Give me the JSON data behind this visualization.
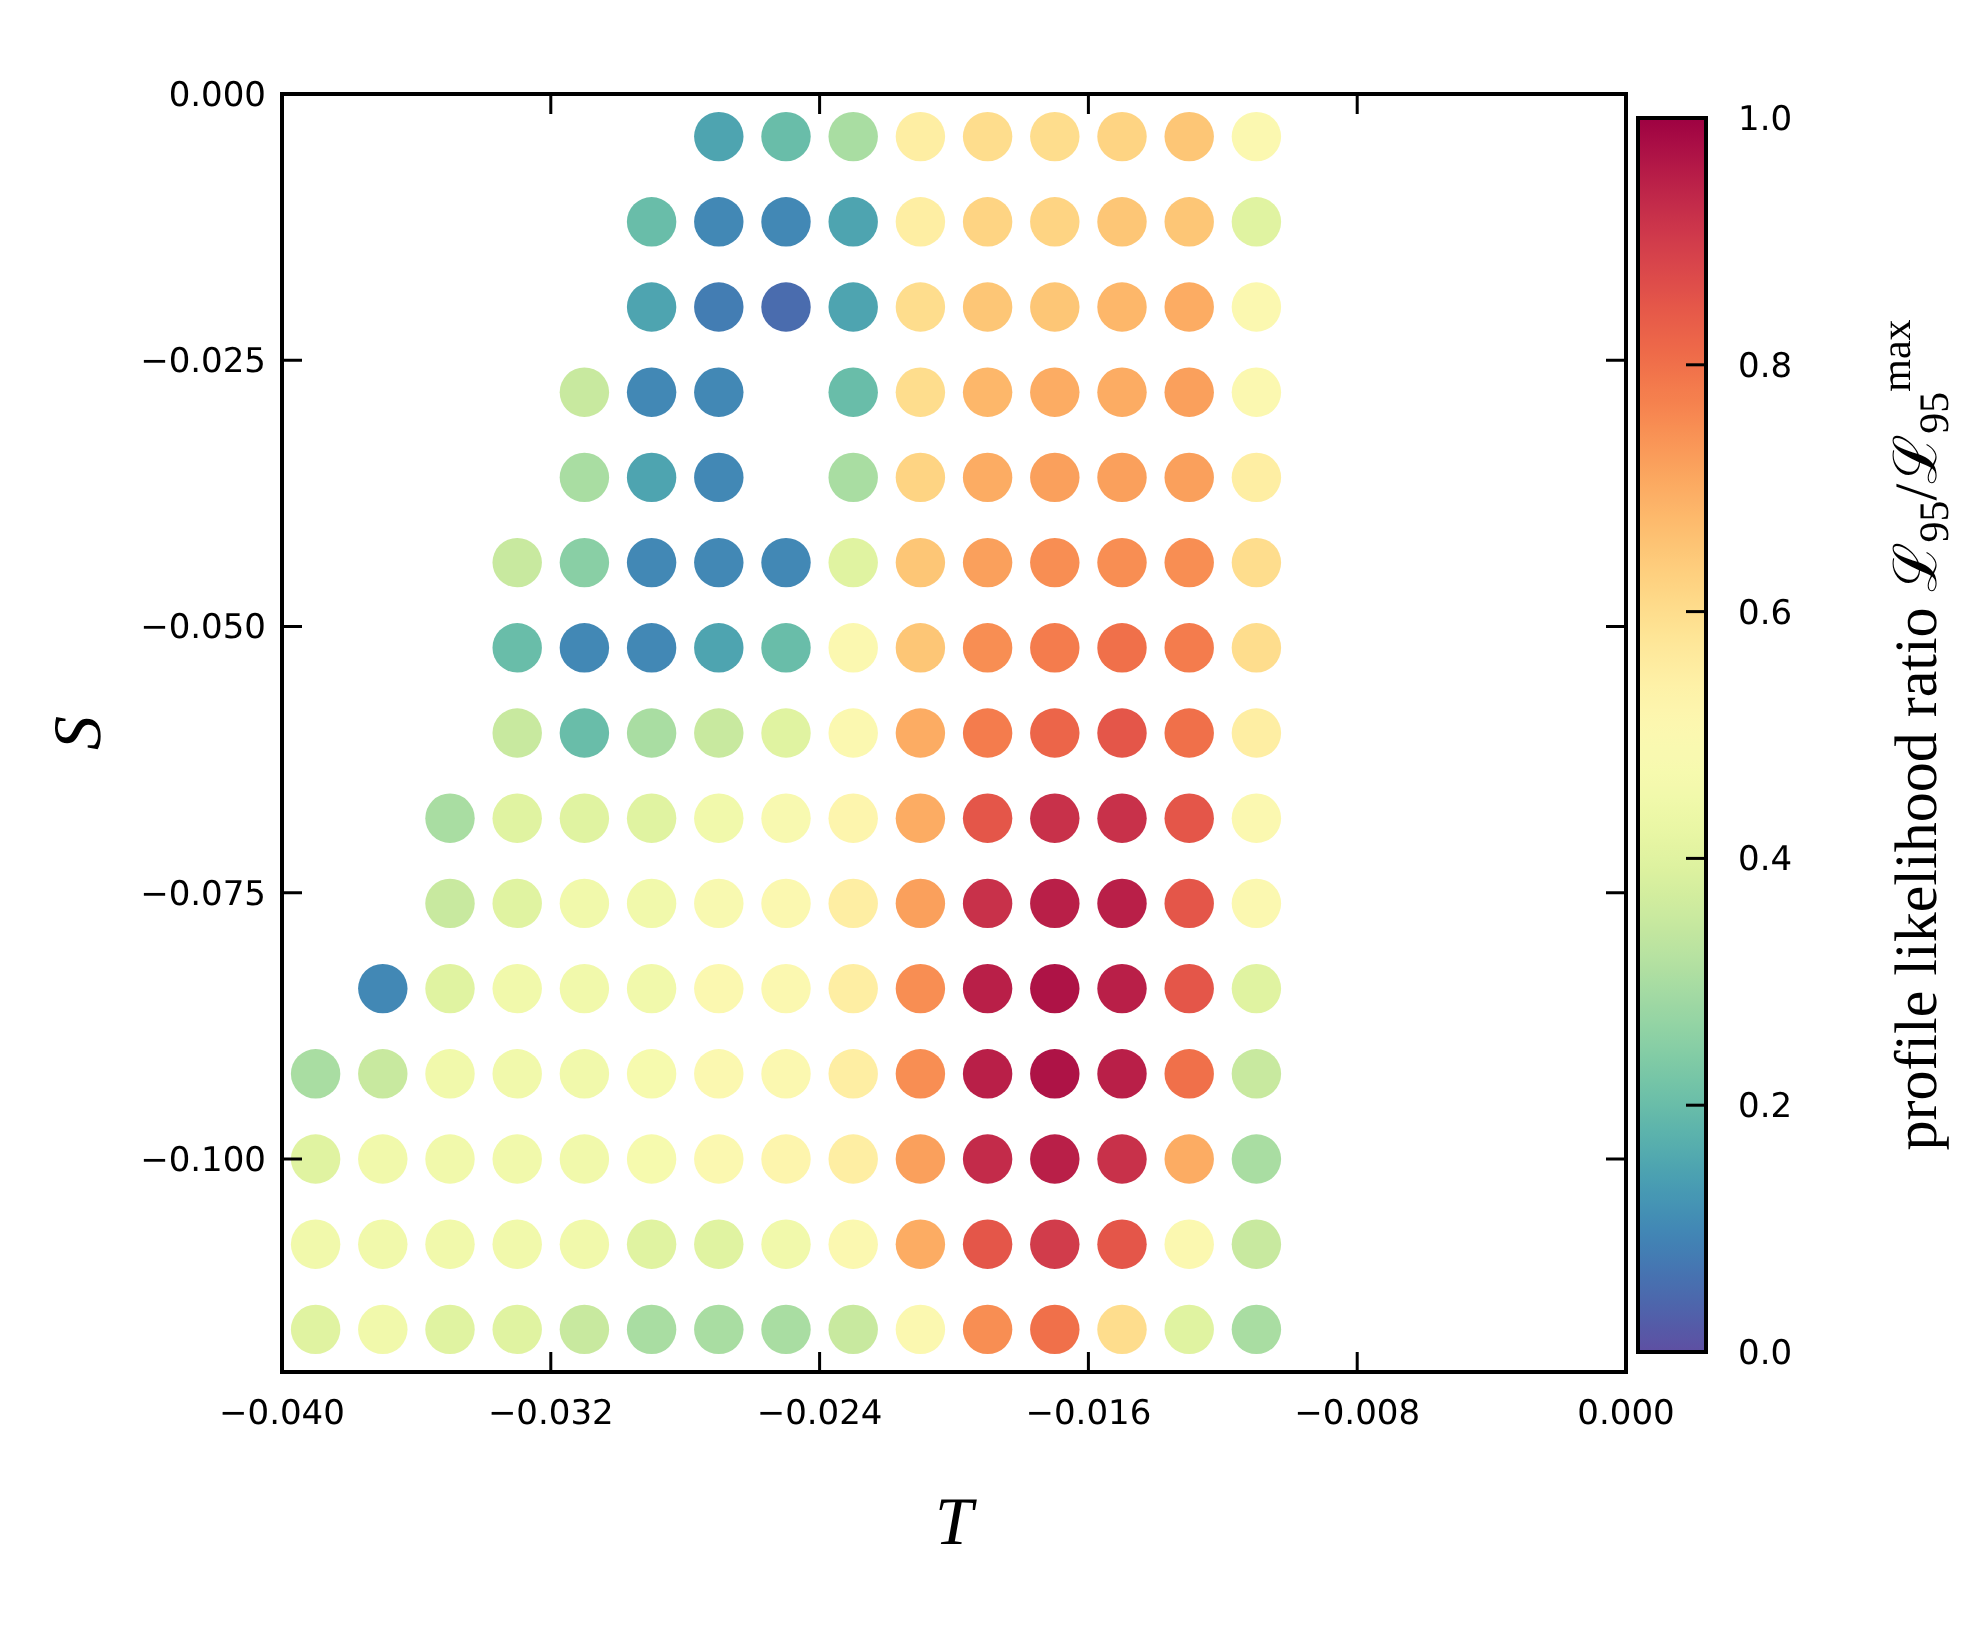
{
  "chart_data": {
    "type": "scatter",
    "xlabel": "T",
    "ylabel": "S",
    "clabel": "profile likelihood ratio ℒ$_{95}$/ℒ$_{95}$$^{max}$",
    "marker": "circle",
    "xlim": [
      -0.04,
      0
    ],
    "ylim": [
      -0.12,
      0
    ],
    "xticks": [
      {
        "value": -0.04,
        "label": "−0.040"
      },
      {
        "value": -0.032,
        "label": "−0.032"
      },
      {
        "value": -0.024,
        "label": "−0.024"
      },
      {
        "value": -0.016,
        "label": "−0.016"
      },
      {
        "value": -0.008,
        "label": "−0.008"
      },
      {
        "value": 0,
        "label": "0.000"
      }
    ],
    "yticks": [
      {
        "value": 0,
        "label": "0.000"
      },
      {
        "value": -0.025,
        "label": "−0.025"
      },
      {
        "value": -0.05,
        "label": "−0.050"
      },
      {
        "value": -0.075,
        "label": "−0.075"
      },
      {
        "value": -0.1,
        "label": "−0.100"
      }
    ],
    "clim": [
      0,
      1
    ],
    "cticks": [
      {
        "value": 0,
        "label": "0.0"
      },
      {
        "value": 0.2,
        "label": "0.2"
      },
      {
        "value": 0.4,
        "label": "0.4"
      },
      {
        "value": 0.6,
        "label": "0.6"
      },
      {
        "value": 0.8,
        "label": "0.8"
      },
      {
        "value": 1,
        "label": "1.0"
      }
    ],
    "series": [
      {
        "x": [
          -0.039,
          -0.039,
          -0.039,
          -0.039,
          -0.037,
          -0.037,
          -0.037,
          -0.037,
          -0.037,
          -0.035,
          -0.035,
          -0.035,
          -0.035,
          -0.035,
          -0.035,
          -0.035,
          -0.033,
          -0.033,
          -0.033,
          -0.033,
          -0.033,
          -0.033,
          -0.033,
          -0.033,
          -0.033,
          -0.033,
          -0.031,
          -0.031,
          -0.031,
          -0.031,
          -0.031,
          -0.031,
          -0.031,
          -0.031,
          -0.031,
          -0.031,
          -0.031,
          -0.031,
          -0.029,
          -0.029,
          -0.029,
          -0.029,
          -0.029,
          -0.029,
          -0.029,
          -0.029,
          -0.029,
          -0.029,
          -0.029,
          -0.029,
          -0.029,
          -0.029,
          -0.027,
          -0.027,
          -0.027,
          -0.027,
          -0.027,
          -0.027,
          -0.027,
          -0.027,
          -0.027,
          -0.027,
          -0.027,
          -0.027,
          -0.027,
          -0.027,
          -0.027,
          -0.025,
          -0.025,
          -0.025,
          -0.025,
          -0.025,
          -0.025,
          -0.025,
          -0.025,
          -0.025,
          -0.025,
          -0.025,
          -0.025,
          -0.025,
          -0.023,
          -0.023,
          -0.023,
          -0.023,
          -0.023,
          -0.023,
          -0.023,
          -0.023,
          -0.023,
          -0.023,
          -0.023,
          -0.023,
          -0.023,
          -0.023,
          -0.023,
          -0.021,
          -0.021,
          -0.021,
          -0.021,
          -0.021,
          -0.021,
          -0.021,
          -0.021,
          -0.021,
          -0.021,
          -0.021,
          -0.021,
          -0.021,
          -0.021,
          -0.021,
          -0.019,
          -0.019,
          -0.019,
          -0.019,
          -0.019,
          -0.019,
          -0.019,
          -0.019,
          -0.019,
          -0.019,
          -0.019,
          -0.019,
          -0.019,
          -0.019,
          -0.019,
          -0.017,
          -0.017,
          -0.017,
          -0.017,
          -0.017,
          -0.017,
          -0.017,
          -0.017,
          -0.017,
          -0.017,
          -0.017,
          -0.017,
          -0.017,
          -0.017,
          -0.017,
          -0.015,
          -0.015,
          -0.015,
          -0.015,
          -0.015,
          -0.015,
          -0.015,
          -0.015,
          -0.015,
          -0.015,
          -0.015,
          -0.015,
          -0.015,
          -0.015,
          -0.015,
          -0.013,
          -0.013,
          -0.013,
          -0.013,
          -0.013,
          -0.013,
          -0.013,
          -0.013,
          -0.013,
          -0.013,
          -0.013,
          -0.013,
          -0.013,
          -0.013,
          -0.013,
          -0.011,
          -0.011,
          -0.011,
          -0.011,
          -0.011,
          -0.011,
          -0.011,
          -0.011,
          -0.011,
          -0.011,
          -0.011,
          -0.011,
          -0.011,
          -0.011,
          -0.011
        ],
        "values": [
          -0.092,
          -0.1,
          -0.108,
          -0.116,
          -0.084,
          -0.092,
          -0.1,
          -0.108,
          -0.116,
          -0.068,
          -0.076,
          -0.084,
          -0.092,
          -0.1,
          -0.108,
          -0.116,
          -0.044,
          -0.052,
          -0.06,
          -0.068,
          -0.076,
          -0.084,
          -0.092,
          -0.1,
          -0.108,
          -0.116,
          -0.028,
          -0.036,
          -0.044,
          -0.052,
          -0.06,
          -0.068,
          -0.076,
          -0.084,
          -0.092,
          -0.1,
          -0.108,
          -0.116,
          -0.012,
          -0.02,
          -0.028,
          -0.036,
          -0.044,
          -0.052,
          -0.06,
          -0.068,
          -0.076,
          -0.084,
          -0.092,
          -0.1,
          -0.108,
          -0.116,
          -0.004,
          -0.012,
          -0.02,
          -0.028,
          -0.036,
          -0.044,
          -0.052,
          -0.06,
          -0.068,
          -0.076,
          -0.084,
          -0.092,
          -0.1,
          -0.108,
          -0.116,
          -0.004,
          -0.012,
          -0.02,
          -0.044,
          -0.052,
          -0.06,
          -0.068,
          -0.076,
          -0.084,
          -0.092,
          -0.1,
          -0.108,
          -0.116,
          -0.004,
          -0.012,
          -0.02,
          -0.028,
          -0.036,
          -0.044,
          -0.052,
          -0.06,
          -0.068,
          -0.076,
          -0.084,
          -0.092,
          -0.1,
          -0.108,
          -0.116,
          -0.004,
          -0.012,
          -0.02,
          -0.028,
          -0.036,
          -0.044,
          -0.052,
          -0.06,
          -0.068,
          -0.076,
          -0.084,
          -0.092,
          -0.1,
          -0.108,
          -0.116,
          -0.004,
          -0.012,
          -0.02,
          -0.028,
          -0.036,
          -0.044,
          -0.052,
          -0.06,
          -0.068,
          -0.076,
          -0.084,
          -0.092,
          -0.1,
          -0.108,
          -0.116,
          -0.004,
          -0.012,
          -0.02,
          -0.028,
          -0.036,
          -0.044,
          -0.052,
          -0.06,
          -0.068,
          -0.076,
          -0.084,
          -0.092,
          -0.1,
          -0.108,
          -0.116,
          -0.004,
          -0.012,
          -0.02,
          -0.028,
          -0.036,
          -0.044,
          -0.052,
          -0.06,
          -0.068,
          -0.076,
          -0.084,
          -0.092,
          -0.1,
          -0.108,
          -0.116,
          -0.004,
          -0.012,
          -0.02,
          -0.028,
          -0.036,
          -0.044,
          -0.052,
          -0.06,
          -0.068,
          -0.076,
          -0.084,
          -0.092,
          -0.1,
          -0.108,
          -0.116,
          -0.004,
          -0.012,
          -0.02,
          -0.028,
          -0.036,
          -0.044,
          -0.052,
          -0.06,
          -0.068,
          -0.076,
          -0.084,
          -0.092,
          -0.1,
          -0.108,
          -0.116
        ],
        "cvalues": [
          0.3,
          0.4,
          0.45,
          0.4,
          0.1,
          0.35,
          0.45,
          0.45,
          0.45,
          0.3,
          0.35,
          0.4,
          0.45,
          0.45,
          0.45,
          0.4,
          0.35,
          0.2,
          0.35,
          0.4,
          0.4,
          0.45,
          0.45,
          0.45,
          0.45,
          0.4,
          0.35,
          0.3,
          0.25,
          0.1,
          0.2,
          0.4,
          0.45,
          0.45,
          0.45,
          0.45,
          0.45,
          0.35,
          0.2,
          0.15,
          0.1,
          0.15,
          0.1,
          0.1,
          0.3,
          0.4,
          0.45,
          0.45,
          0.47,
          0.47,
          0.4,
          0.3,
          0.15,
          0.1,
          0.08,
          0.1,
          0.1,
          0.1,
          0.15,
          0.35,
          0.45,
          0.48,
          0.5,
          0.5,
          0.5,
          0.4,
          0.3,
          0.2,
          0.1,
          0.05,
          0.1,
          0.2,
          0.4,
          0.48,
          0.5,
          0.5,
          0.5,
          0.52,
          0.45,
          0.3,
          0.3,
          0.15,
          0.15,
          0.2,
          0.3,
          0.4,
          0.5,
          0.5,
          0.52,
          0.55,
          0.55,
          0.55,
          0.55,
          0.5,
          0.35,
          0.55,
          0.55,
          0.6,
          0.6,
          0.62,
          0.65,
          0.65,
          0.7,
          0.7,
          0.72,
          0.75,
          0.75,
          0.72,
          0.7,
          0.5,
          0.6,
          0.62,
          0.65,
          0.68,
          0.7,
          0.72,
          0.75,
          0.78,
          0.85,
          0.92,
          0.95,
          0.95,
          0.93,
          0.85,
          0.75,
          0.6,
          0.62,
          0.65,
          0.7,
          0.72,
          0.75,
          0.78,
          0.82,
          0.92,
          0.95,
          0.97,
          0.97,
          0.95,
          0.9,
          0.8,
          0.62,
          0.65,
          0.68,
          0.7,
          0.72,
          0.75,
          0.8,
          0.85,
          0.92,
          0.95,
          0.95,
          0.95,
          0.92,
          0.85,
          0.6,
          0.65,
          0.65,
          0.7,
          0.72,
          0.72,
          0.75,
          0.78,
          0.8,
          0.85,
          0.85,
          0.85,
          0.8,
          0.7,
          0.5,
          0.4,
          0.5,
          0.4,
          0.5,
          0.5,
          0.55,
          0.6,
          0.6,
          0.55,
          0.5,
          0.5,
          0.4,
          0.35,
          0.3,
          0.35,
          0.3
        ]
      }
    ]
  }
}
